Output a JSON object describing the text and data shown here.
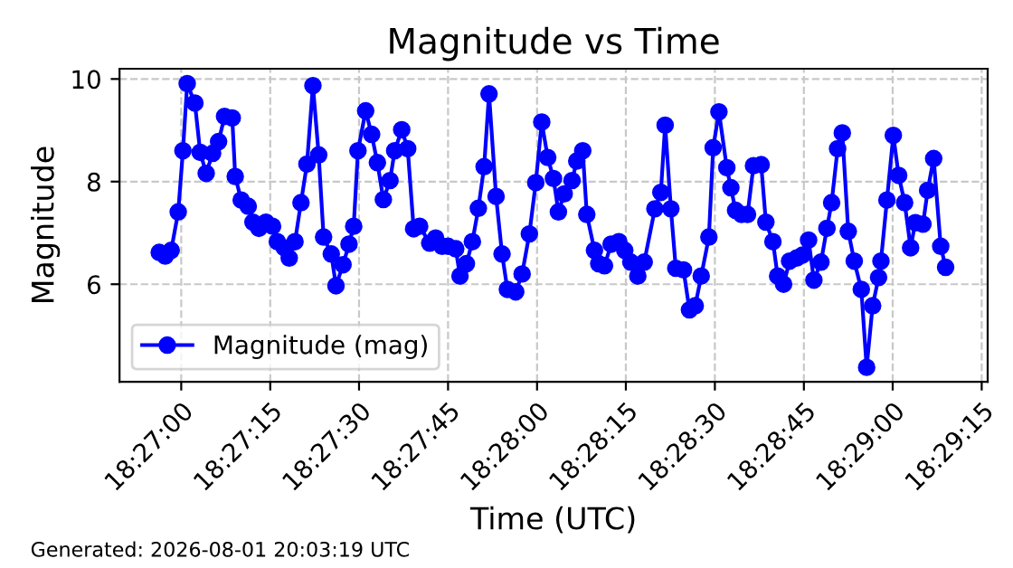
{
  "chart_data": {
    "type": "line",
    "title": "Magnitude vs Time",
    "xlabel": "Time (UTC)",
    "ylabel": "Magnitude",
    "annotations": [
      "Generated: 2026-08-01 20:03:19 UTC"
    ],
    "x": [
      18.44897,
      18.44925,
      18.44953,
      18.44986,
      18.45008,
      18.45028,
      18.45064,
      18.45089,
      18.45117,
      18.45147,
      18.45175,
      18.45203,
      18.45239,
      18.45253,
      18.45281,
      18.45314,
      18.45336,
      18.45364,
      18.45397,
      18.45428,
      18.4545,
      18.45483,
      18.45506,
      18.45533,
      18.45561,
      18.45589,
      18.45617,
      18.45644,
      18.45667,
      18.45703,
      18.45725,
      18.45758,
      18.45786,
      18.45808,
      18.45828,
      18.45864,
      18.45892,
      18.45919,
      18.45947,
      18.45978,
      18.46,
      18.46033,
      18.46061,
      18.46089,
      18.46117,
      18.46164,
      18.46192,
      18.46222,
      18.4625,
      18.46286,
      18.46306,
      18.46336,
      18.46364,
      18.46392,
      18.46419,
      18.46442,
      18.46475,
      18.46503,
      18.46528,
      18.46567,
      18.46597,
      18.46631,
      18.46661,
      18.46689,
      18.46717,
      18.46744,
      18.46767,
      18.46794,
      18.46831,
      18.46853,
      18.46881,
      18.469,
      18.46936,
      18.46956,
      18.46983,
      18.47014,
      18.4705,
      18.47078,
      18.47106,
      18.47139,
      18.47169,
      18.47219,
      18.47247,
      18.47267,
      18.47294,
      18.47317,
      18.47353,
      18.47381,
      18.47408,
      18.47436,
      18.47472,
      18.47492,
      18.47519,
      18.47556,
      18.47575,
      18.47597,
      18.47625,
      18.47653,
      18.47681,
      18.47717,
      18.47739,
      18.47772,
      18.47794,
      18.47822,
      18.4785,
      18.47883,
      18.47911,
      18.47939,
      18.47964,
      18.47997,
      18.48025,
      18.48047,
      18.48075,
      18.48097,
      18.48125,
      18.48153,
      18.48186,
      18.48211,
      18.48239,
      18.48267,
      18.48278,
      18.48306,
      18.48336,
      18.48361,
      18.48389,
      18.48417,
      18.48439,
      18.48475,
      18.48497,
      18.48525,
      18.48558,
      18.48581
    ],
    "series": [
      {
        "name": "Magnitude (mag)",
        "color": "#0000ff",
        "values": [
          6.62,
          6.55,
          6.66,
          7.41,
          8.6,
          9.91,
          9.53,
          8.57,
          8.16,
          8.55,
          8.78,
          9.27,
          9.24,
          8.1,
          7.64,
          7.52,
          7.21,
          7.09,
          7.21,
          7.13,
          6.83,
          6.71,
          6.51,
          6.83,
          7.59,
          8.34,
          9.87,
          8.52,
          6.92,
          6.59,
          5.97,
          6.38,
          6.78,
          7.13,
          8.6,
          9.38,
          8.92,
          8.37,
          7.65,
          8.02,
          8.6,
          9.01,
          8.64,
          7.08,
          7.13,
          6.8,
          6.9,
          6.74,
          6.74,
          6.69,
          6.16,
          6.4,
          6.83,
          7.48,
          8.29,
          9.71,
          7.71,
          6.59,
          5.9,
          5.85,
          6.2,
          6.98,
          7.98,
          9.16,
          8.47,
          8.06,
          7.41,
          7.76,
          8.02,
          8.4,
          8.6,
          7.36,
          6.66,
          6.4,
          6.36,
          6.78,
          6.83,
          6.66,
          6.43,
          6.16,
          6.43,
          7.47,
          7.79,
          9.1,
          7.47,
          6.31,
          6.28,
          5.5,
          5.58,
          6.16,
          6.92,
          8.66,
          9.36,
          8.27,
          7.88,
          7.44,
          7.36,
          7.36,
          8.31,
          8.33,
          7.21,
          6.83,
          6.16,
          6.0,
          6.45,
          6.51,
          6.57,
          6.86,
          6.08,
          6.43,
          7.09,
          7.59,
          8.64,
          8.95,
          7.03,
          6.45,
          5.9,
          4.38,
          5.58,
          6.13,
          6.45,
          7.64,
          8.9,
          8.12,
          7.59,
          6.71,
          7.2,
          7.17,
          7.83,
          8.45,
          6.74,
          6.33
        ]
      }
    ],
    "xlim": [
      18.44711,
      18.48778
    ],
    "xticks": [
      {
        "value": 18.45,
        "label": "18:27:00"
      },
      {
        "value": 18.45417,
        "label": "18:27:15"
      },
      {
        "value": 18.45833,
        "label": "18:27:30"
      },
      {
        "value": 18.4625,
        "label": "18:27:45"
      },
      {
        "value": 18.46667,
        "label": "18:28:00"
      },
      {
        "value": 18.47083,
        "label": "18:28:15"
      },
      {
        "value": 18.475,
        "label": "18:28:30"
      },
      {
        "value": 18.47917,
        "label": "18:28:45"
      },
      {
        "value": 18.48333,
        "label": "18:29:00"
      },
      {
        "value": 18.4875,
        "label": "18:29:15"
      }
    ],
    "ylim": [
      4.1,
      10.2
    ],
    "yticks": [
      6,
      8,
      10
    ],
    "grid": true,
    "legend": "lower left",
    "marker": "circle",
    "line_style": "solid"
  }
}
